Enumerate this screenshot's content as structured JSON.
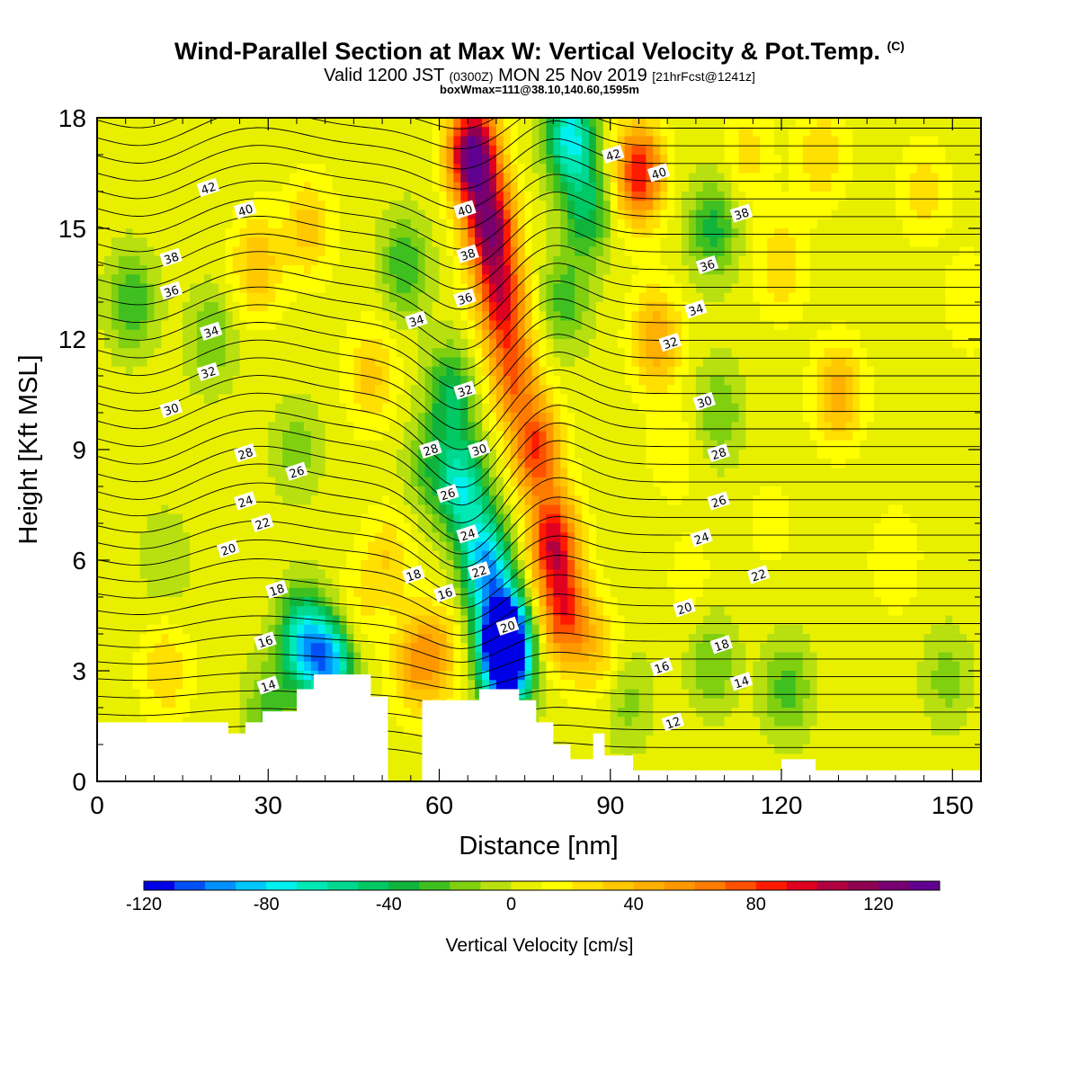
{
  "header": {
    "title": "Wind-Parallel Section at Max W: Vertical Velocity & Pot.Temp.",
    "title_mark": "(C)",
    "valid_prefix": "Valid 1200 JST",
    "valid_zulu": "(0300Z)",
    "valid_date": "MON 25 Nov 2019",
    "forecast_info": "[21hrFcst@1241z]",
    "box_info": "boxWmax=111@38.10,140.60,1595m"
  },
  "chart_data": {
    "type": "heatmap",
    "description_fields": "filled vertical velocity with potential temperature contours",
    "xlabel": "Distance [nm]",
    "ylabel": "Height [Kft MSL]",
    "xlim": [
      0,
      155
    ],
    "ylim": [
      0,
      18
    ],
    "xticks": [
      0,
      30,
      60,
      90,
      120,
      150
    ],
    "xtick_labels": [
      "0",
      "30",
      "60",
      "90",
      "120",
      "150"
    ],
    "yticks": [
      0,
      3,
      6,
      9,
      12,
      15,
      18
    ],
    "ytick_labels": [
      "0",
      "3",
      "6",
      "9",
      "12",
      "15",
      "18"
    ],
    "colorbar": {
      "title": "Vertical Velocity [cm/s]",
      "min": -120,
      "max": 140,
      "step": 10,
      "tick_values": [
        -120,
        -80,
        -40,
        0,
        40,
        80,
        120
      ],
      "tick_labels": [
        "-120",
        "-80",
        "-40",
        "0",
        "40",
        "80",
        "120"
      ],
      "colors": [
        "#0000e6",
        "#0050f5",
        "#0090ff",
        "#00c8ff",
        "#00f0f0",
        "#00e8b4",
        "#00d890",
        "#00c864",
        "#10b43c",
        "#40c020",
        "#80d010",
        "#b8e010",
        "#e8f000",
        "#ffff00",
        "#ffe000",
        "#ffc800",
        "#ffb000",
        "#ff9800",
        "#ff7c00",
        "#ff5000",
        "#ff1a00",
        "#e00020",
        "#b00040",
        "#900050",
        "#780070",
        "#600090"
      ]
    },
    "velocity_features": [
      {
        "x": 6,
        "z": 13,
        "w": -35
      },
      {
        "x": 12,
        "z": 6,
        "w": -15
      },
      {
        "x": 12,
        "z": 3,
        "w": 25
      },
      {
        "x": 28,
        "z": 14,
        "w": 35
      },
      {
        "x": 20,
        "z": 12,
        "w": -25
      },
      {
        "x": 37,
        "z": 15,
        "w": 30
      },
      {
        "x": 30,
        "z": 1.8,
        "w": -30
      },
      {
        "x": 36,
        "z": 3.8,
        "w": -75
      },
      {
        "x": 41,
        "z": 3.2,
        "w": -90
      },
      {
        "x": 35,
        "z": 9,
        "w": -20
      },
      {
        "x": 45,
        "z": 4.5,
        "w": 20
      },
      {
        "x": 48,
        "z": 11,
        "w": 30
      },
      {
        "x": 51,
        "z": 6,
        "w": 25
      },
      {
        "x": 56,
        "z": 3.2,
        "w": 40
      },
      {
        "x": 54,
        "z": 14,
        "w": -35
      },
      {
        "x": 58,
        "z": 8.5,
        "w": -25
      },
      {
        "x": 60,
        "z": 3.5,
        "w": 30
      },
      {
        "x": 62,
        "z": 10.5,
        "w": -45
      },
      {
        "x": 64,
        "z": 8,
        "w": -70
      },
      {
        "x": 68,
        "z": 6,
        "w": -90
      },
      {
        "x": 71,
        "z": 4,
        "w": -120
      },
      {
        "x": 72,
        "z": 3.2,
        "w": -115
      },
      {
        "x": 66,
        "z": 17,
        "w": 135
      },
      {
        "x": 69,
        "z": 15,
        "w": 110
      },
      {
        "x": 71,
        "z": 13,
        "w": 80
      },
      {
        "x": 73,
        "z": 11,
        "w": 60
      },
      {
        "x": 77,
        "z": 9,
        "w": 75
      },
      {
        "x": 80,
        "z": 6.5,
        "w": 90
      },
      {
        "x": 82,
        "z": 4.5,
        "w": 75
      },
      {
        "x": 82,
        "z": 13,
        "w": -30
      },
      {
        "x": 83,
        "z": 17.5,
        "w": -80
      },
      {
        "x": 86,
        "z": 15.5,
        "w": -45
      },
      {
        "x": 88,
        "z": 3.5,
        "w": 25
      },
      {
        "x": 95,
        "z": 16.5,
        "w": 85
      },
      {
        "x": 98,
        "z": 12,
        "w": 45
      },
      {
        "x": 101,
        "z": 9,
        "w": 15
      },
      {
        "x": 93,
        "z": 2.2,
        "w": -20
      },
      {
        "x": 104,
        "z": 5.5,
        "w": 10
      },
      {
        "x": 108,
        "z": 15,
        "w": -40
      },
      {
        "x": 109,
        "z": 10,
        "w": -25
      },
      {
        "x": 108,
        "z": 3.2,
        "w": -25
      },
      {
        "x": 114,
        "z": 17,
        "w": 20
      },
      {
        "x": 120,
        "z": 14,
        "w": 25
      },
      {
        "x": 118,
        "z": 7,
        "w": 10
      },
      {
        "x": 121,
        "z": 2.5,
        "w": -30
      },
      {
        "x": 130,
        "z": 10.5,
        "w": 40
      },
      {
        "x": 127,
        "z": 17,
        "w": 25
      },
      {
        "x": 140,
        "z": 6,
        "w": 15
      },
      {
        "x": 145,
        "z": 16,
        "w": 20
      },
      {
        "x": 149,
        "z": 2.8,
        "w": -20
      },
      {
        "x": 153,
        "z": 13,
        "w": 15
      }
    ],
    "terrain_profile": [
      [
        0,
        1.6
      ],
      [
        23,
        1.6
      ],
      [
        23,
        1.3
      ],
      [
        26,
        1.3
      ],
      [
        26,
        1.6
      ],
      [
        29,
        1.6
      ],
      [
        29,
        1.9
      ],
      [
        35,
        1.9
      ],
      [
        35,
        2.5
      ],
      [
        38,
        2.5
      ],
      [
        38,
        2.9
      ],
      [
        48,
        2.9
      ],
      [
        48,
        2.3
      ],
      [
        51,
        2.3
      ],
      [
        51,
        0
      ],
      [
        57,
        0
      ],
      [
        57,
        2.2
      ],
      [
        67,
        2.2
      ],
      [
        67,
        2.5
      ],
      [
        74,
        2.5
      ],
      [
        74,
        2.2
      ],
      [
        77,
        2.2
      ],
      [
        77,
        1.6
      ],
      [
        80,
        1.6
      ],
      [
        80,
        1.0
      ],
      [
        83,
        1.0
      ],
      [
        83,
        0.6
      ],
      [
        87,
        0.6
      ],
      [
        87,
        1.3
      ],
      [
        89,
        1.3
      ],
      [
        89,
        0.7
      ],
      [
        94,
        0.7
      ],
      [
        94,
        0.3
      ],
      [
        120,
        0.3
      ],
      [
        120,
        0.6
      ],
      [
        126,
        0.6
      ],
      [
        126,
        0.3
      ],
      [
        155,
        0.3
      ]
    ],
    "theta_contour_levels": [
      12,
      14,
      16,
      18,
      20,
      22,
      24,
      26,
      28,
      30,
      32,
      34,
      36,
      38,
      40,
      42
    ],
    "theta_labels": [
      {
        "text": "42",
        "x": 19.5,
        "z": 16.1
      },
      {
        "text": "40",
        "x": 26,
        "z": 15.5
      },
      {
        "text": "38",
        "x": 13,
        "z": 14.2
      },
      {
        "text": "36",
        "x": 13,
        "z": 13.3
      },
      {
        "text": "34",
        "x": 20,
        "z": 12.2
      },
      {
        "text": "32",
        "x": 19.5,
        "z": 11.1
      },
      {
        "text": "30",
        "x": 13,
        "z": 10.1
      },
      {
        "text": "28",
        "x": 26,
        "z": 8.9
      },
      {
        "text": "26",
        "x": 35,
        "z": 8.4
      },
      {
        "text": "24",
        "x": 26,
        "z": 7.6
      },
      {
        "text": "22",
        "x": 29,
        "z": 7.0
      },
      {
        "text": "20",
        "x": 23,
        "z": 6.3
      },
      {
        "text": "18",
        "x": 31.5,
        "z": 5.2
      },
      {
        "text": "16",
        "x": 29.5,
        "z": 3.8
      },
      {
        "text": "14",
        "x": 30,
        "z": 2.6
      },
      {
        "text": "40",
        "x": 64.5,
        "z": 15.5
      },
      {
        "text": "38",
        "x": 65,
        "z": 14.3
      },
      {
        "text": "36",
        "x": 64.5,
        "z": 13.1
      },
      {
        "text": "34",
        "x": 56,
        "z": 12.5
      },
      {
        "text": "32",
        "x": 64.5,
        "z": 10.6
      },
      {
        "text": "30",
        "x": 67,
        "z": 9.0
      },
      {
        "text": "28",
        "x": 58.5,
        "z": 9.0
      },
      {
        "text": "26",
        "x": 61.5,
        "z": 7.8
      },
      {
        "text": "24",
        "x": 65,
        "z": 6.7
      },
      {
        "text": "22",
        "x": 67,
        "z": 5.7
      },
      {
        "text": "20",
        "x": 72,
        "z": 4.2
      },
      {
        "text": "18",
        "x": 55.5,
        "z": 5.6
      },
      {
        "text": "16",
        "x": 61,
        "z": 5.1
      },
      {
        "text": "42",
        "x": 90.5,
        "z": 17.0
      },
      {
        "text": "40",
        "x": 98.5,
        "z": 16.5
      },
      {
        "text": "38",
        "x": 113,
        "z": 15.4
      },
      {
        "text": "36",
        "x": 107,
        "z": 14.0
      },
      {
        "text": "34",
        "x": 105,
        "z": 12.8
      },
      {
        "text": "32",
        "x": 100.5,
        "z": 11.9
      },
      {
        "text": "30",
        "x": 106.5,
        "z": 10.3
      },
      {
        "text": "28",
        "x": 109,
        "z": 8.9
      },
      {
        "text": "26",
        "x": 109,
        "z": 7.6
      },
      {
        "text": "24",
        "x": 106,
        "z": 6.6
      },
      {
        "text": "22",
        "x": 116,
        "z": 5.6
      },
      {
        "text": "20",
        "x": 103,
        "z": 4.7
      },
      {
        "text": "18",
        "x": 109.5,
        "z": 3.7
      },
      {
        "text": "16",
        "x": 99,
        "z": 3.1
      },
      {
        "text": "14",
        "x": 113,
        "z": 2.7
      },
      {
        "text": "12",
        "x": 101,
        "z": 1.6
      }
    ]
  }
}
